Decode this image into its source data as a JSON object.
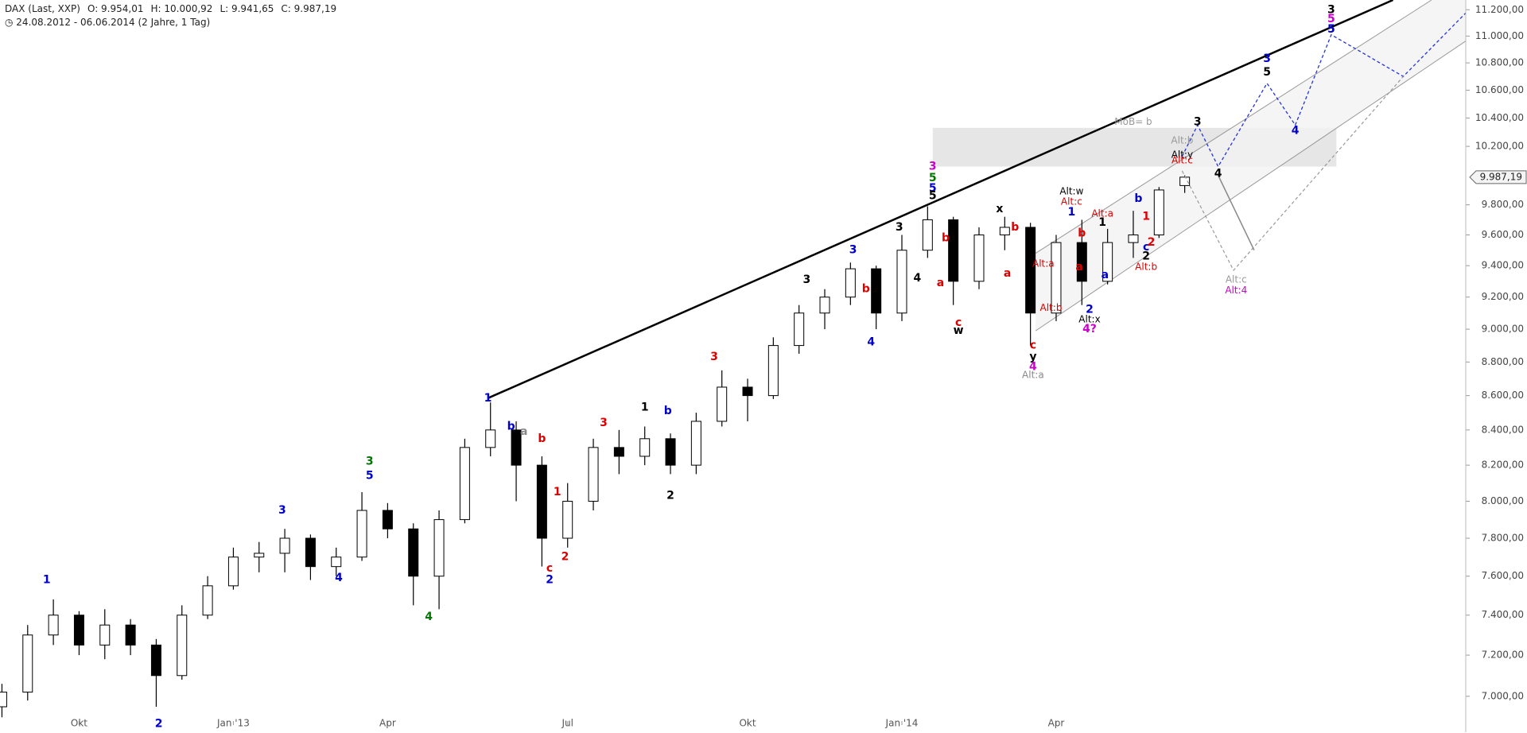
{
  "header": {
    "title": "DAX (Last, XXP)",
    "open": "O: 9.954,01",
    "high": "H: 10.000,92",
    "low": "L: 9.941,65",
    "close": "C: 9.987,19",
    "range": "24.08.2012 - 06.06.2014 (2 Jahre, 1 Tag)"
  },
  "chart_data": {
    "type": "candlestick",
    "log_scale": true,
    "grid": false,
    "categories": [
      null,
      null,
      null,
      "Okt",
      null,
      null,
      null,
      null,
      null,
      "Jan '13",
      null,
      null,
      null,
      null,
      null,
      "Apr",
      null,
      null,
      null,
      null,
      null,
      null,
      "Jul",
      null,
      null,
      null,
      null,
      null,
      null,
      "Okt",
      null,
      null,
      null,
      null,
      null,
      "Jan '14",
      null,
      null,
      null,
      null,
      null,
      "Apr",
      null,
      null,
      null,
      null,
      null
    ],
    "open": [
      6950,
      7020,
      7300,
      7400,
      7250,
      7350,
      7250,
      7100,
      7400,
      7550,
      7700,
      7720,
      7800,
      7650,
      7700,
      7950,
      7850,
      7600,
      7900,
      8300,
      8400,
      8200,
      7800,
      8000,
      8300,
      8250,
      8350,
      8200,
      8450,
      8650,
      8600,
      8900,
      9100,
      9200,
      9380,
      9100,
      9500,
      9700,
      9300,
      9600,
      9650,
      9100,
      9550,
      9300,
      9550,
      9600,
      9930
    ],
    "high": [
      7060,
      7350,
      7480,
      7420,
      7430,
      7380,
      7280,
      7450,
      7600,
      7750,
      7780,
      7850,
      7820,
      7750,
      8050,
      7990,
      7880,
      7950,
      8350,
      8560,
      8450,
      8250,
      8100,
      8350,
      8400,
      8420,
      8380,
      8500,
      8750,
      8700,
      8950,
      9150,
      9250,
      9420,
      9400,
      9600,
      9790,
      9720,
      9650,
      9720,
      9680,
      9600,
      9700,
      9640,
      9760,
      9920,
      10000
    ],
    "low": [
      6900,
      6980,
      7250,
      7200,
      7180,
      7200,
      6950,
      7080,
      7380,
      7530,
      7620,
      7620,
      7580,
      7600,
      7680,
      7800,
      7450,
      7430,
      7880,
      8250,
      8000,
      7650,
      7750,
      7950,
      8150,
      8200,
      8150,
      8150,
      8420,
      8450,
      8580,
      8850,
      9000,
      9150,
      9000,
      9050,
      9450,
      9150,
      9250,
      9500,
      8900,
      9050,
      9150,
      9280,
      9450,
      9580,
      9880
    ],
    "close": [
      7020,
      7300,
      7400,
      7250,
      7350,
      7250,
      7100,
      7400,
      7550,
      7700,
      7720,
      7800,
      7650,
      7700,
      7950,
      7850,
      7600,
      7900,
      8300,
      8400,
      8200,
      7800,
      8000,
      8300,
      8250,
      8350,
      8200,
      8450,
      8650,
      8600,
      8900,
      9100,
      9200,
      9380,
      9100,
      9500,
      9700,
      9300,
      9600,
      9650,
      9100,
      9550,
      9300,
      9550,
      9600,
      9900,
      9987.19
    ],
    "up_color": "#ffffff",
    "down_color": "#000000",
    "edge_color": "#000000",
    "ylim": [
      6830,
      11275
    ],
    "yticks": [
      {
        "value": 7000,
        "label": "7.000,00"
      },
      {
        "value": 7200,
        "label": "7.200,00"
      },
      {
        "value": 7400,
        "label": "7.400,00"
      },
      {
        "value": 7600,
        "label": "7.600,00"
      },
      {
        "value": 7800,
        "label": "7.800,00"
      },
      {
        "value": 8000,
        "label": "8.000,00"
      },
      {
        "value": 8200,
        "label": "8.200,00"
      },
      {
        "value": 8400,
        "label": "8.400,00"
      },
      {
        "value": 8600,
        "label": "8.600,00"
      },
      {
        "value": 8800,
        "label": "8.800,00"
      },
      {
        "value": 9000,
        "label": "9.000,00"
      },
      {
        "value": 9200,
        "label": "9.200,00"
      },
      {
        "value": 9400,
        "label": "9.400,00"
      },
      {
        "value": 9600,
        "label": "9.600,00"
      },
      {
        "value": 9800,
        "label": "9.800,00"
      },
      {
        "value": 10200,
        "label": "10.200,00"
      },
      {
        "value": 10400,
        "label": "10.400,00"
      },
      {
        "value": 10600,
        "label": "10.600,00"
      },
      {
        "value": 10800,
        "label": "10.800,00"
      },
      {
        "value": 11000,
        "label": "11.000,00"
      },
      {
        "value": 11200,
        "label": "11.200,00"
      }
    ],
    "last_price": {
      "value": 9987.19,
      "label": "9.987,19"
    },
    "zone": {
      "from": 36.2,
      "to": 51.9,
      "low": 10060,
      "high": 10330,
      "color": "#e6e6e6"
    },
    "channel": {
      "upper": [
        [
          40.2,
          9480
        ],
        [
          55.6,
          11275
        ]
      ],
      "lower": [
        [
          40.2,
          8990
        ],
        [
          59.3,
          11275
        ]
      ],
      "fill": "#f3f3f3",
      "color": "#999999"
    },
    "lines": [
      {
        "points": [
          [
            18.9,
            8585
          ],
          [
            54.1,
            11275
          ]
        ],
        "color": "#000000",
        "width": 2.5,
        "dash": "none"
      },
      {
        "points": [
          [
            45.9,
            10130
          ],
          [
            46.5,
            10350
          ],
          [
            47.3,
            10060
          ],
          [
            49.2,
            10650
          ],
          [
            50.3,
            10350
          ],
          [
            51.7,
            11010
          ],
          [
            54.5,
            10700
          ],
          [
            57.5,
            11290
          ]
        ],
        "color": "#2233dd",
        "width": 1.3,
        "dash": "4 3"
      },
      {
        "points": [
          [
            45.9,
            10030
          ],
          [
            47.9,
            9370
          ],
          [
            54.5,
            10700
          ]
        ],
        "color": "#999999",
        "width": 1.2,
        "dash": "4 3"
      },
      {
        "points": [
          [
            47.3,
            10000
          ],
          [
            48.7,
            9500
          ]
        ],
        "color": "#888888",
        "width": 1.5,
        "dash": "none"
      }
    ],
    "annotations": [
      {
        "text": "1",
        "at": 1.74,
        "y": 7580,
        "color": "#0000cc"
      },
      {
        "text": "2",
        "at": 6.1,
        "y": 6870,
        "color": "#0000cc"
      },
      {
        "text": "3",
        "at": 10.9,
        "y": 7950,
        "color": "#0000cc"
      },
      {
        "text": "3",
        "at": 14.3,
        "y": 8220,
        "color": "#007700"
      },
      {
        "text": "5",
        "at": 14.3,
        "y": 8140,
        "color": "#0000cc"
      },
      {
        "text": "4",
        "at": 13.1,
        "y": 7590,
        "color": "#0000cc"
      },
      {
        "text": "4",
        "at": 16.6,
        "y": 7390,
        "color": "#007700"
      },
      {
        "text": "1",
        "at": 18.9,
        "y": 8585,
        "color": "#0000cc"
      },
      {
        "text": "b",
        "at": 19.8,
        "y": 8420,
        "color": "#0000cc"
      },
      {
        "text": "a",
        "at": 20.3,
        "y": 8390,
        "color": "#888888"
      },
      {
        "text": "b",
        "at": 21,
        "y": 8350,
        "color": "#dd0000"
      },
      {
        "text": "c",
        "at": 21.3,
        "y": 7640,
        "color": "#dd0000"
      },
      {
        "text": "2",
        "at": 21.3,
        "y": 7580,
        "color": "#0000cc"
      },
      {
        "text": "1",
        "at": 21.6,
        "y": 8050,
        "color": "#dd0000"
      },
      {
        "text": "2",
        "at": 21.9,
        "y": 7700,
        "color": "#dd0000"
      },
      {
        "text": "3",
        "at": 23.4,
        "y": 8440,
        "color": "#dd0000"
      },
      {
        "text": "1",
        "at": 25,
        "y": 8530,
        "color": "#000000"
      },
      {
        "text": "b",
        "at": 25.9,
        "y": 8510,
        "color": "#0000cc"
      },
      {
        "text": "2",
        "at": 26,
        "y": 8030,
        "color": "#000000"
      },
      {
        "text": "3",
        "at": 27.7,
        "y": 8830,
        "color": "#dd0000"
      },
      {
        "text": "3",
        "at": 31.3,
        "y": 9310,
        "color": "#000000"
      },
      {
        "text": "3",
        "at": 33.1,
        "y": 9500,
        "color": "#0000cc"
      },
      {
        "text": "b",
        "at": 33.6,
        "y": 9250,
        "color": "#dd0000"
      },
      {
        "text": "4",
        "at": 33.8,
        "y": 8920,
        "color": "#0000cc"
      },
      {
        "text": "3",
        "at": 34.9,
        "y": 9650,
        "color": "#000000"
      },
      {
        "text": "4",
        "at": 35.6,
        "y": 9320,
        "color": "#000000"
      },
      {
        "text": "3",
        "at": 36.2,
        "y": 10060,
        "color": "#cc00cc"
      },
      {
        "text": "5",
        "at": 36.2,
        "y": 9980,
        "color": "#007700"
      },
      {
        "text": "5",
        "at": 36.2,
        "y": 9910,
        "color": "#0000cc"
      },
      {
        "text": "5",
        "at": 36.2,
        "y": 9860,
        "color": "#000000"
      },
      {
        "text": "b",
        "at": 36.7,
        "y": 9580,
        "color": "#dd0000"
      },
      {
        "text": "a",
        "at": 36.5,
        "y": 9290,
        "color": "#dd0000"
      },
      {
        "text": "c",
        "at": 37.2,
        "y": 9040,
        "color": "#dd0000"
      },
      {
        "text": "w",
        "at": 37.2,
        "y": 8990,
        "color": "#000000"
      },
      {
        "text": "x",
        "at": 38.8,
        "y": 9770,
        "color": "#000000"
      },
      {
        "text": "b",
        "at": 39.4,
        "y": 9650,
        "color": "#dd0000"
      },
      {
        "text": "a",
        "at": 39.1,
        "y": 9350,
        "color": "#dd0000"
      },
      {
        "text": "c",
        "at": 40.1,
        "y": 8900,
        "color": "#dd0000"
      },
      {
        "text": "y",
        "at": 40.1,
        "y": 8830,
        "color": "#000000"
      },
      {
        "text": "4",
        "at": 40.1,
        "y": 8770,
        "color": "#cc00cc"
      },
      {
        "text": "Alt:a",
        "at": 40.1,
        "y": 8720,
        "color": "#888888"
      },
      {
        "text": "Alt:a",
        "at": 40.5,
        "y": 9410,
        "color": "#dd0000"
      },
      {
        "text": "Alt:b",
        "at": 40.8,
        "y": 9130,
        "color": "#dd0000"
      },
      {
        "text": "Alt:w",
        "at": 41.6,
        "y": 9890,
        "color": "#000000"
      },
      {
        "text": "Alt:c",
        "at": 41.6,
        "y": 9820,
        "color": "#dd0000"
      },
      {
        "text": "1",
        "at": 41.6,
        "y": 9750,
        "color": "#0000cc"
      },
      {
        "text": "b",
        "at": 42,
        "y": 9610,
        "color": "#dd0000"
      },
      {
        "text": "a",
        "at": 41.9,
        "y": 9390,
        "color": "#dd0000"
      },
      {
        "text": "Alt:a",
        "at": 42.8,
        "y": 9740,
        "color": "#dd0000"
      },
      {
        "text": "1",
        "at": 42.8,
        "y": 9680,
        "color": "#000000"
      },
      {
        "text": "2",
        "at": 42.3,
        "y": 9120,
        "color": "#0000cc"
      },
      {
        "text": "Alt:x",
        "at": 42.3,
        "y": 9060,
        "color": "#000000"
      },
      {
        "text": "4?",
        "at": 42.3,
        "y": 9000,
        "color": "#cc00cc"
      },
      {
        "text": "a",
        "at": 42.9,
        "y": 9340,
        "color": "#0000cc"
      },
      {
        "text": "b",
        "at": 44.2,
        "y": 9840,
        "color": "#0000cc"
      },
      {
        "text": "1",
        "at": 44.5,
        "y": 9720,
        "color": "#dd0000"
      },
      {
        "text": "c",
        "at": 44.5,
        "y": 9520,
        "color": "#0000cc"
      },
      {
        "text": "2",
        "at": 44.7,
        "y": 9550,
        "color": "#dd0000"
      },
      {
        "text": "2",
        "at": 44.5,
        "y": 9460,
        "color": "#000000"
      },
      {
        "text": "Alt:b",
        "at": 44.5,
        "y": 9390,
        "color": "#dd0000"
      },
      {
        "text": "MoB= b",
        "at": 44,
        "y": 10370,
        "color": "#999999"
      },
      {
        "text": "3",
        "at": 46.5,
        "y": 10370,
        "color": "#000000"
      },
      {
        "text": "Alt:b",
        "at": 45.9,
        "y": 10240,
        "color": "#999999"
      },
      {
        "text": "Alt:y",
        "at": 45.9,
        "y": 10140,
        "color": "#000000"
      },
      {
        "text": "Alt:c",
        "at": 45.9,
        "y": 10100,
        "color": "#dd0000"
      },
      {
        "text": "4",
        "at": 47.3,
        "y": 10010,
        "color": "#000000"
      },
      {
        "text": "3",
        "at": 49.2,
        "y": 10830,
        "color": "#0000cc"
      },
      {
        "text": "5",
        "at": 49.2,
        "y": 10730,
        "color": "#000000"
      },
      {
        "text": "4",
        "at": 50.3,
        "y": 10310,
        "color": "#0000cc"
      },
      {
        "text": "3",
        "at": 51.7,
        "y": 11200,
        "color": "#000000"
      },
      {
        "text": "5",
        "at": 51.7,
        "y": 11130,
        "color": "#cc00cc"
      },
      {
        "text": "5",
        "at": 51.7,
        "y": 11050,
        "color": "#0000cc"
      },
      {
        "text": "Alt:c",
        "at": 48,
        "y": 9310,
        "color": "#999999"
      },
      {
        "text": "Alt:4",
        "at": 48,
        "y": 9240,
        "color": "#cc00cc"
      }
    ]
  }
}
